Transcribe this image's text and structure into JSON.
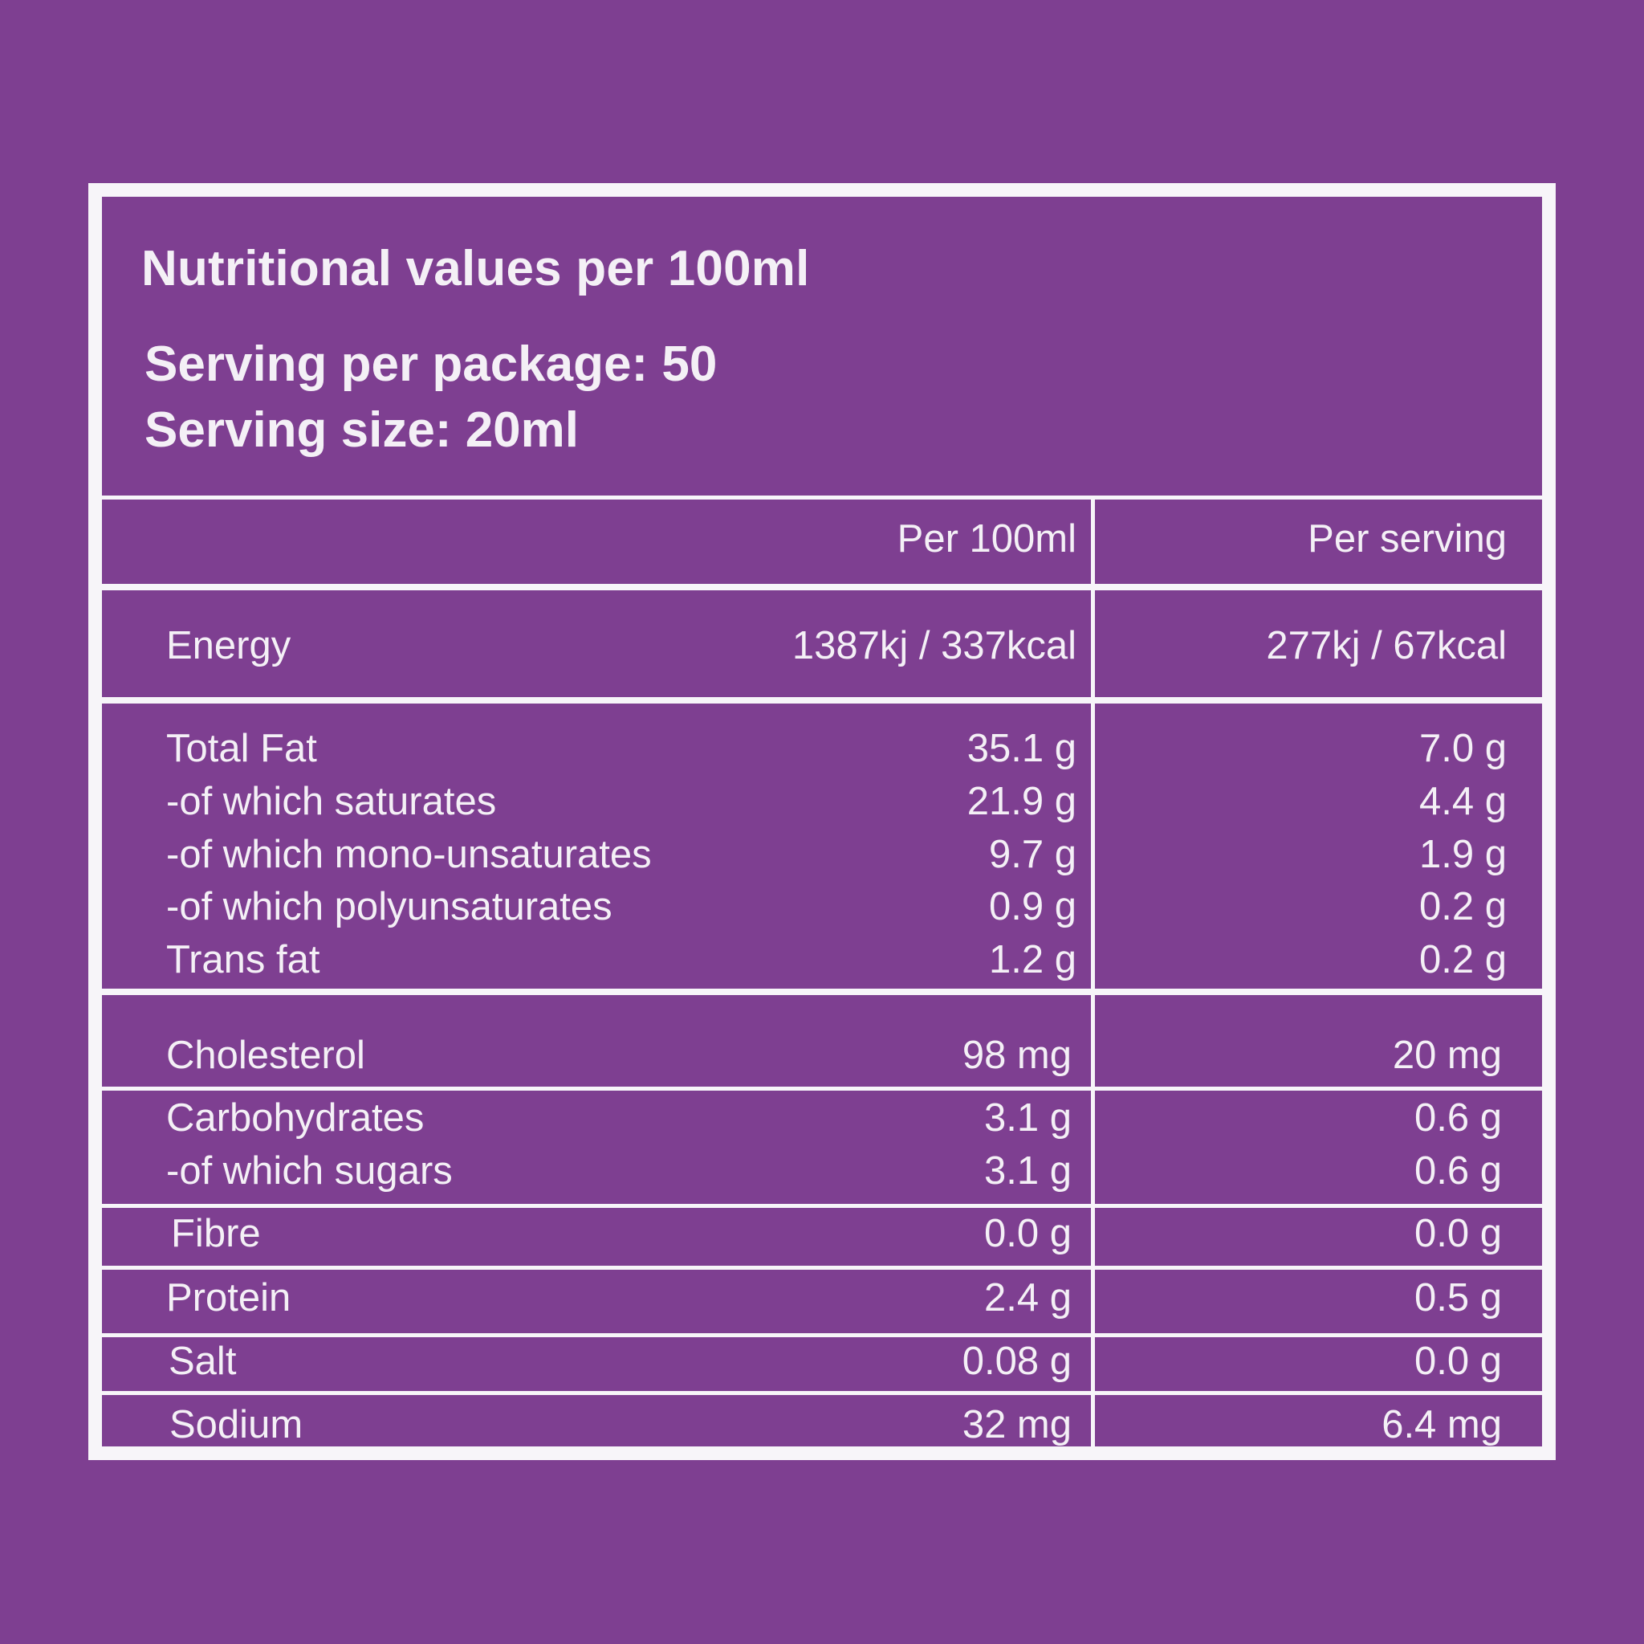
{
  "header": {
    "title": "Nutritional values per 100ml",
    "serving_per_package": "Serving per package: 50",
    "serving_size": "Serving size: 20ml"
  },
  "columns": {
    "per_100ml": "Per 100ml",
    "per_serving": "Per serving"
  },
  "rows": [
    {
      "name": "Energy",
      "per_100ml": "1387kj / 337kcal",
      "per_serving": "277kj / 67kcal"
    },
    {
      "name": "Total Fat",
      "per_100ml": "35.1 g",
      "per_serving": "7.0 g"
    },
    {
      "name": "-of which saturates",
      "per_100ml": "21.9 g",
      "per_serving": "4.4 g"
    },
    {
      "name": "-of which mono-unsaturates",
      "per_100ml": "9.7 g",
      "per_serving": "1.9 g"
    },
    {
      "name": "-of which polyunsaturates",
      "per_100ml": "0.9 g",
      "per_serving": "0.2 g"
    },
    {
      "name": "Trans fat",
      "per_100ml": "1.2 g",
      "per_serving": "0.2 g"
    },
    {
      "name": "Cholesterol",
      "per_100ml": "98 mg",
      "per_serving": "20 mg"
    },
    {
      "name": "Carbohydrates",
      "per_100ml": "3.1 g",
      "per_serving": "0.6 g"
    },
    {
      "name": "-of which sugars",
      "per_100ml": "3.1 g",
      "per_serving": "0.6 g"
    },
    {
      "name": "Fibre",
      "per_100ml": "0.0 g",
      "per_serving": "0.0 g"
    },
    {
      "name": "Protein",
      "per_100ml": "2.4 g",
      "per_serving": "0.5 g"
    },
    {
      "name": "Salt",
      "per_100ml": "0.08 g",
      "per_serving": "0.0 g"
    },
    {
      "name": "Sodium",
      "per_100ml": "32 mg",
      "per_serving": "6.4 mg"
    }
  ],
  "colors": {
    "background": "#7e3f91",
    "lines": "#f7f5f9",
    "text": "#f4f0f6"
  }
}
